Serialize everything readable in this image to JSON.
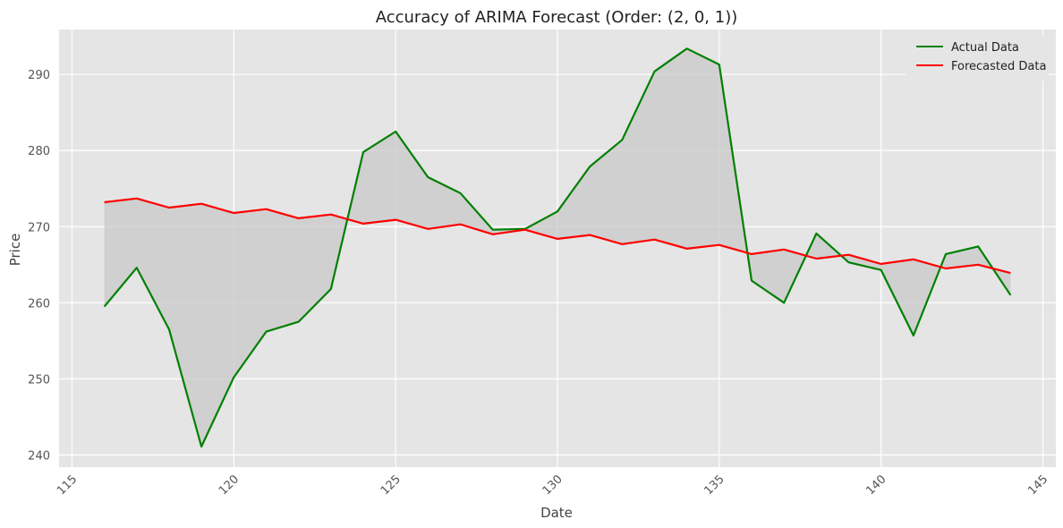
{
  "chart_data": {
    "type": "line",
    "title": "Accuracy of ARIMA Forecast (Order: (2, 0, 1))",
    "xlabel": "Date",
    "ylabel": "Price",
    "xlim": [
      114.6,
      145.4
    ],
    "ylim": [
      238.4,
      295.9
    ],
    "x_ticks": [
      115,
      120,
      125,
      130,
      135,
      140,
      145
    ],
    "y_ticks": [
      240,
      250,
      260,
      270,
      280,
      290
    ],
    "grid": true,
    "legend_position": "top-right",
    "fill_between": true,
    "x": [
      116,
      117,
      118,
      119,
      120,
      121,
      122,
      123,
      124,
      125,
      126,
      127,
      128,
      129,
      130,
      131,
      132,
      133,
      134,
      135,
      136,
      137,
      138,
      139,
      140,
      141,
      142,
      143,
      144
    ],
    "series": [
      {
        "name": "Actual Data",
        "color": "#008000",
        "values": [
          259.5,
          264.6,
          256.5,
          241.1,
          250.2,
          256.2,
          257.5,
          261.8,
          279.8,
          282.5,
          276.5,
          274.4,
          269.6,
          269.7,
          272.0,
          277.9,
          281.4,
          290.4,
          293.4,
          291.3,
          262.9,
          260.0,
          269.1,
          265.3,
          264.3,
          255.7,
          266.4,
          267.4,
          261.0
        ]
      },
      {
        "name": "Forecasted Data",
        "color": "#ff0000",
        "values": [
          273.2,
          273.7,
          272.5,
          273.0,
          271.8,
          272.3,
          271.1,
          271.6,
          270.4,
          270.9,
          269.7,
          270.3,
          269.0,
          269.6,
          268.4,
          268.9,
          267.7,
          268.3,
          267.1,
          267.6,
          266.4,
          267.0,
          265.8,
          266.3,
          265.1,
          265.7,
          264.5,
          265.0,
          263.9
        ]
      }
    ],
    "fill_color": "#c8c8c8"
  }
}
